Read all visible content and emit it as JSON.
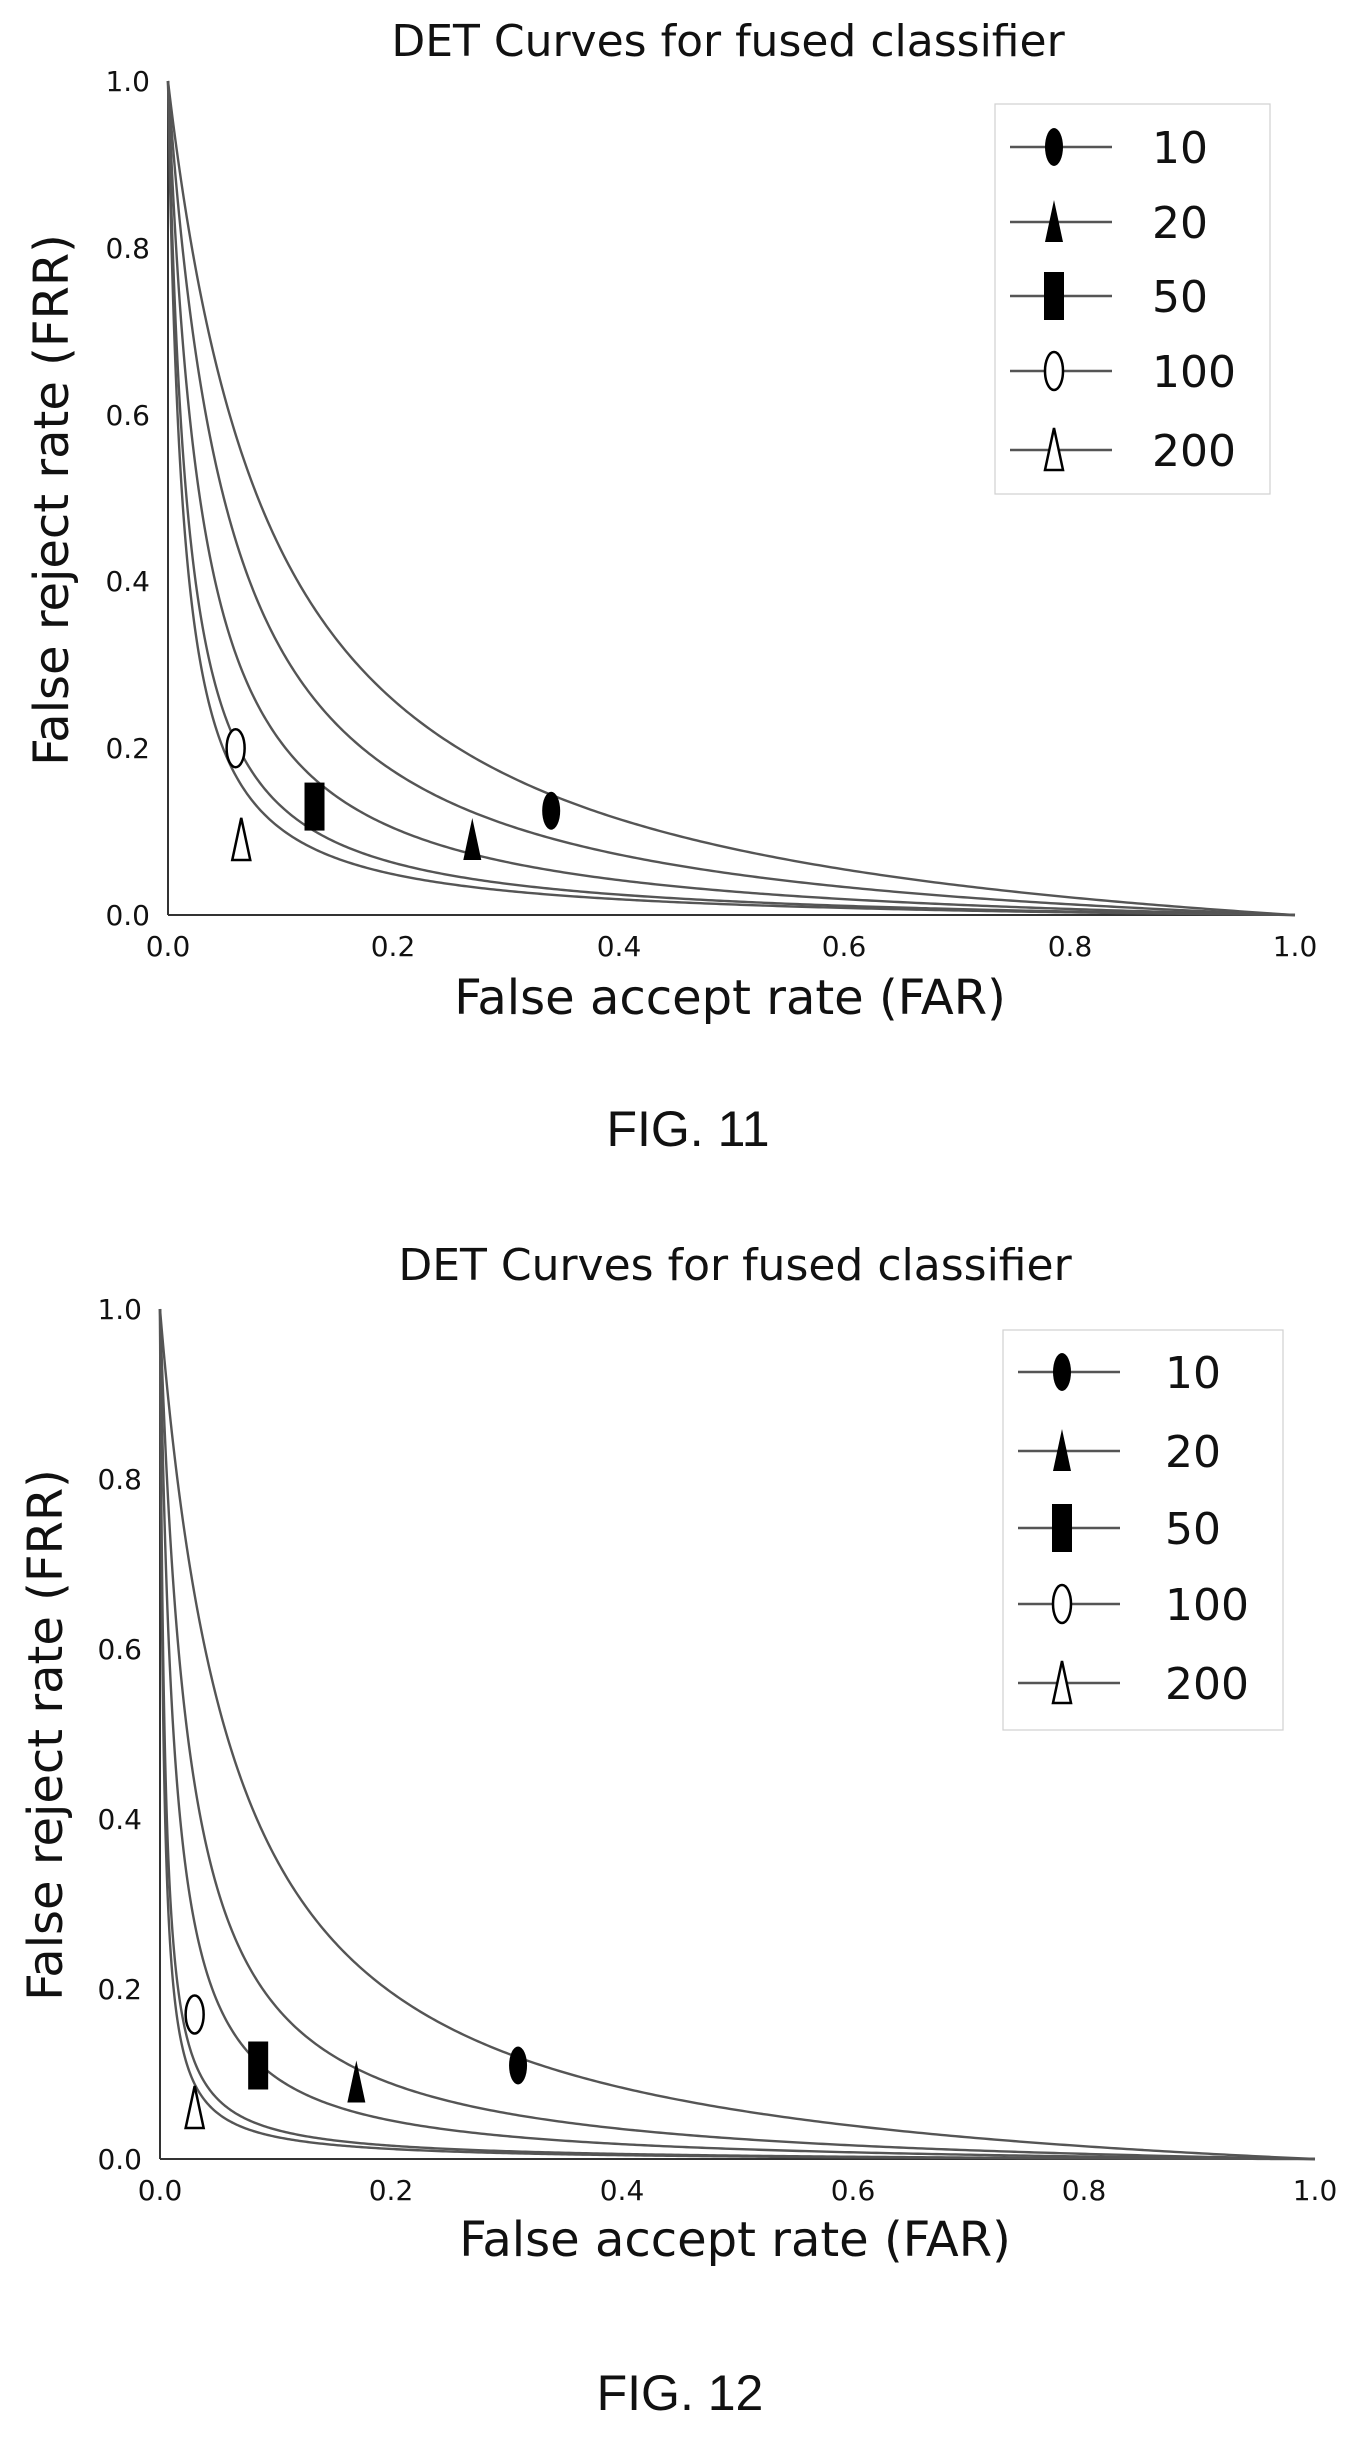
{
  "figures": [
    {
      "caption": "FIG. 11"
    },
    {
      "caption": "FIG. 12"
    }
  ],
  "chart_data": [
    {
      "type": "line",
      "title": "DET Curves for fused classifier",
      "xlabel": "False accept rate (FAR)",
      "ylabel": "False reject rate (FRR)",
      "xlim": [
        0,
        1
      ],
      "ylim": [
        0,
        1
      ],
      "x_ticks": [
        "0.0",
        "0.2",
        "0.4",
        "0.6",
        "0.8",
        "1.0"
      ],
      "y_ticks": [
        "0.0",
        "0.2",
        "0.4",
        "0.6",
        "0.8",
        "1.0"
      ],
      "grid": false,
      "legend_position": "top-right",
      "series": [
        {
          "name": "10",
          "marker": "filled-ellipse",
          "k": 0.095,
          "marker_x": 0.34,
          "marker_y": 0.125
        },
        {
          "name": "20",
          "marker": "filled-triangle",
          "k": 0.055,
          "marker_x": 0.27,
          "marker_y": 0.09
        },
        {
          "name": "50",
          "marker": "filled-square",
          "k": 0.03,
          "marker_x": 0.13,
          "marker_y": 0.13
        },
        {
          "name": "100",
          "marker": "open-ellipse",
          "k": 0.017,
          "marker_x": 0.06,
          "marker_y": 0.2
        },
        {
          "name": "200",
          "marker": "open-triangle",
          "k": 0.013,
          "marker_x": 0.065,
          "marker_y": 0.09
        }
      ]
    },
    {
      "type": "line",
      "title": "DET Curves for fused classifier",
      "xlabel": "False accept rate (FAR)",
      "ylabel": "False reject rate (FRR)",
      "xlim": [
        0,
        1
      ],
      "ylim": [
        0,
        1
      ],
      "x_ticks": [
        "0.0",
        "0.2",
        "0.4",
        "0.6",
        "0.8",
        "1.0"
      ],
      "y_ticks": [
        "0.0",
        "0.2",
        "0.4",
        "0.6",
        "0.8",
        "1.0"
      ],
      "grid": false,
      "legend_position": "top-right",
      "series": [
        {
          "name": "10",
          "marker": "filled-ellipse",
          "k": 0.065,
          "marker_x": 0.31,
          "marker_y": 0.11
        },
        {
          "name": "20",
          "marker": "filled-triangle",
          "k": 0.025,
          "marker_x": 0.17,
          "marker_y": 0.09
        },
        {
          "name": "50",
          "marker": "filled-square",
          "k": 0.012,
          "marker_x": 0.085,
          "marker_y": 0.11
        },
        {
          "name": "100",
          "marker": "open-ellipse",
          "k": 0.004,
          "marker_x": 0.03,
          "marker_y": 0.17
        },
        {
          "name": "200",
          "marker": "open-triangle",
          "k": 0.003,
          "marker_x": 0.03,
          "marker_y": 0.06
        }
      ]
    }
  ]
}
